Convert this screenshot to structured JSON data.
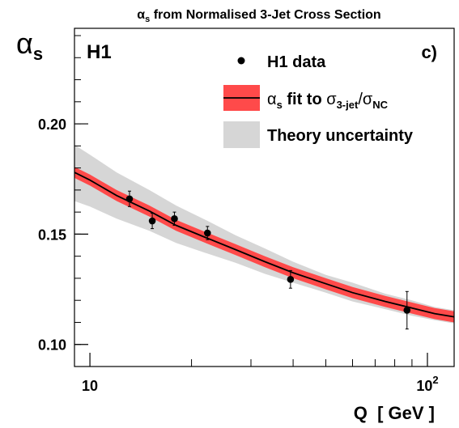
{
  "chart_data": {
    "type": "scatter",
    "title": {
      "alpha": "α",
      "sub": "s",
      "rest": " from Normalised 3-Jet Cross Section"
    },
    "xlabel": "Q  [ GeV ]",
    "ylabel": {
      "alpha": "α",
      "sub": "s"
    },
    "x_scale": "log",
    "xlim": [
      9,
      120
    ],
    "ylim": [
      0.09,
      0.2433
    ],
    "x_ticks": [
      {
        "value": 10,
        "base": "10",
        "exp": ""
      },
      {
        "value": 100,
        "base": "10",
        "exp": "2"
      }
    ],
    "y_ticks": [
      {
        "value": 0.1,
        "label": "0.10"
      },
      {
        "value": 0.15,
        "label": "0.15"
      },
      {
        "value": 0.2,
        "label": "0.20"
      }
    ],
    "experiment_label": "H1",
    "panel_label": "c)",
    "legend": {
      "placement": "top-right",
      "data": "H1 data",
      "fit": {
        "alpha": "α",
        "alpha_sub": "s",
        "mid": " fit to ",
        "sigma1": "σ",
        "sigma1_sub": "3-jet",
        "slash": "/",
        "sigma2": "σ",
        "sigma2_sub": "NC"
      },
      "theory": "Theory uncertainty"
    },
    "series": [
      {
        "name": "H1 data",
        "points": [
          {
            "x": 13.1,
            "y": 0.166,
            "err": 0.0035
          },
          {
            "x": 15.3,
            "y": 0.156,
            "err": 0.0035
          },
          {
            "x": 17.8,
            "y": 0.157,
            "err": 0.003
          },
          {
            "x": 22.3,
            "y": 0.1505,
            "err": 0.003
          },
          {
            "x": 39.3,
            "y": 0.1295,
            "err": 0.004
          },
          {
            "x": 87.0,
            "y": 0.1155,
            "err": 0.0085
          }
        ]
      }
    ],
    "fit_curve": [
      {
        "x": 9.0,
        "y": 0.178
      },
      {
        "x": 10,
        "y": 0.1745
      },
      {
        "x": 12,
        "y": 0.1675
      },
      {
        "x": 15,
        "y": 0.1605
      },
      {
        "x": 18,
        "y": 0.154
      },
      {
        "x": 22,
        "y": 0.1485
      },
      {
        "x": 27,
        "y": 0.143
      },
      {
        "x": 33,
        "y": 0.1375
      },
      {
        "x": 40,
        "y": 0.1325
      },
      {
        "x": 50,
        "y": 0.1275
      },
      {
        "x": 60,
        "y": 0.1235
      },
      {
        "x": 75,
        "y": 0.1195
      },
      {
        "x": 90,
        "y": 0.1165
      },
      {
        "x": 105,
        "y": 0.114
      },
      {
        "x": 120,
        "y": 0.1125
      }
    ],
    "fit_band_halfwidth": 0.0025,
    "theory_band": [
      {
        "x": 9.0,
        "lo": 0.165,
        "hi": 0.1905
      },
      {
        "x": 10,
        "lo": 0.1625,
        "hi": 0.186
      },
      {
        "x": 12,
        "lo": 0.157,
        "hi": 0.178
      },
      {
        "x": 15,
        "lo": 0.1515,
        "hi": 0.17
      },
      {
        "x": 18,
        "lo": 0.146,
        "hi": 0.163
      },
      {
        "x": 22,
        "lo": 0.1415,
        "hi": 0.1565
      },
      {
        "x": 27,
        "lo": 0.137,
        "hi": 0.1495
      },
      {
        "x": 33,
        "lo": 0.132,
        "hi": 0.1435
      },
      {
        "x": 40,
        "lo": 0.128,
        "hi": 0.1375
      },
      {
        "x": 50,
        "lo": 0.1235,
        "hi": 0.1315
      },
      {
        "x": 60,
        "lo": 0.1195,
        "hi": 0.128
      },
      {
        "x": 75,
        "lo": 0.116,
        "hi": 0.123
      },
      {
        "x": 90,
        "lo": 0.113,
        "hi": 0.12
      },
      {
        "x": 105,
        "lo": 0.111,
        "hi": 0.117
      },
      {
        "x": 120,
        "lo": 0.1095,
        "hi": 0.1155
      }
    ],
    "colors": {
      "fit_band": "#ff4a4a",
      "fit_line": "#000000",
      "theory_band": "#d6d6d6",
      "points": "#000000",
      "axes": "#000000"
    }
  }
}
